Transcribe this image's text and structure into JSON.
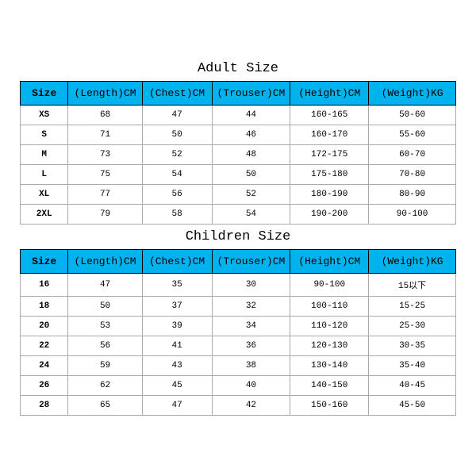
{
  "adult": {
    "title": "Adult Size",
    "columns": [
      "Size",
      "(Length)CM",
      "(Chest)CM",
      "(Trouser)CM",
      "(Height)CM",
      "(Weight)KG"
    ],
    "rows": [
      [
        "XS",
        "68",
        "47",
        "44",
        "160-165",
        "50-60"
      ],
      [
        "S",
        "71",
        "50",
        "46",
        "160-170",
        "55-60"
      ],
      [
        "M",
        "73",
        "52",
        "48",
        "172-175",
        "60-70"
      ],
      [
        "L",
        "75",
        "54",
        "50",
        "175-180",
        "70-80"
      ],
      [
        "XL",
        "77",
        "56",
        "52",
        "180-190",
        "80-90"
      ],
      [
        "2XL",
        "79",
        "58",
        "54",
        "190-200",
        "90-100"
      ]
    ]
  },
  "children": {
    "title": "Children Size",
    "columns": [
      "Size",
      "(Length)CM",
      "(Chest)CM",
      "(Trouser)CM",
      "(Height)CM",
      "(Weight)KG"
    ],
    "rows": [
      [
        "16",
        "47",
        "35",
        "30",
        "90-100",
        "15以下"
      ],
      [
        "18",
        "50",
        "37",
        "32",
        "100-110",
        "15-25"
      ],
      [
        "20",
        "53",
        "39",
        "34",
        "110-120",
        "25-30"
      ],
      [
        "22",
        "56",
        "41",
        "36",
        "120-130",
        "30-35"
      ],
      [
        "24",
        "59",
        "43",
        "38",
        "130-140",
        "35-40"
      ],
      [
        "26",
        "62",
        "45",
        "40",
        "140-150",
        "40-45"
      ],
      [
        "28",
        "65",
        "47",
        "42",
        "150-160",
        "45-50"
      ]
    ]
  },
  "style": {
    "header_bg": "#00b3ee",
    "header_border": "#000000",
    "cell_border": "#aaaaaa",
    "bg": "#ffffff",
    "title_fontsize": 17,
    "header_fontsize": 13,
    "cell_fontsize": 11
  }
}
